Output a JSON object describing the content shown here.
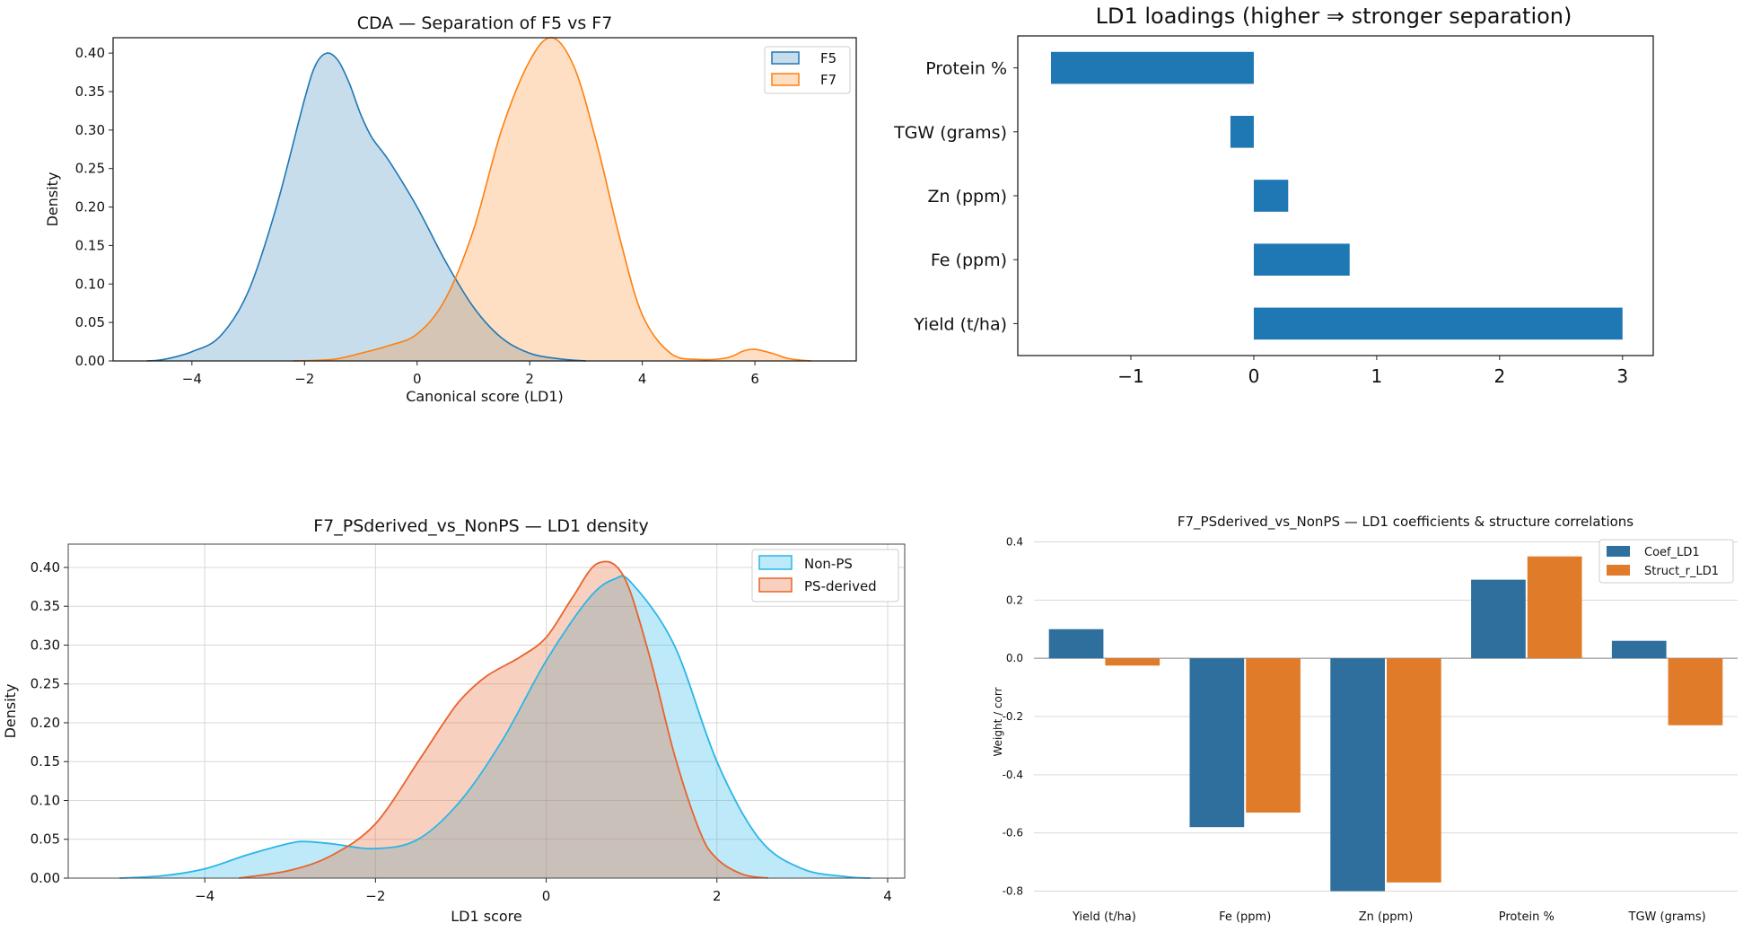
{
  "chart_data": [
    {
      "type": "area",
      "title": "CDA — Separation of F5 vs F7",
      "xlabel": "Canonical score (LD1)",
      "ylabel": "Density",
      "xlim": [
        -5.4,
        7.8
      ],
      "ylim": [
        0,
        0.42
      ],
      "xticks": [
        -4,
        -2,
        0,
        2,
        4,
        6
      ],
      "xtick_labels": [
        "−4",
        "−2",
        "0",
        "2",
        "4",
        "6"
      ],
      "yticks": [
        0,
        0.05,
        0.1,
        0.15,
        0.2,
        0.25,
        0.3,
        0.35,
        0.4
      ],
      "ytick_labels": [
        "0.00",
        "0.05",
        "0.10",
        "0.15",
        "0.20",
        "0.25",
        "0.30",
        "0.35",
        "0.40"
      ],
      "grid": false,
      "legend_position": "top-right",
      "series": [
        {
          "name": "F5",
          "color": "#1f77b4",
          "x": [
            -4.8,
            -4.5,
            -4.0,
            -3.5,
            -3.0,
            -2.5,
            -2.0,
            -1.8,
            -1.6,
            -1.4,
            -1.2,
            -1.0,
            -0.8,
            -0.5,
            0.0,
            0.5,
            1.0,
            1.5,
            2.0,
            2.5,
            3.0
          ],
          "y": [
            0.0,
            0.002,
            0.012,
            0.032,
            0.09,
            0.2,
            0.34,
            0.385,
            0.4,
            0.39,
            0.36,
            0.32,
            0.29,
            0.26,
            0.2,
            0.13,
            0.07,
            0.03,
            0.01,
            0.003,
            0.0
          ]
        },
        {
          "name": "F7",
          "color": "#ff7f0e",
          "x": [
            -2.2,
            -1.5,
            -1.0,
            -0.5,
            0.0,
            0.5,
            1.0,
            1.5,
            2.0,
            2.4,
            2.8,
            3.2,
            3.6,
            4.0,
            4.5,
            5.0,
            5.5,
            5.8,
            6.0,
            6.3,
            6.6,
            7.0
          ],
          "y": [
            0.0,
            0.002,
            0.01,
            0.02,
            0.035,
            0.08,
            0.17,
            0.3,
            0.39,
            0.42,
            0.38,
            0.28,
            0.16,
            0.06,
            0.01,
            0.002,
            0.004,
            0.013,
            0.015,
            0.01,
            0.003,
            0.0
          ]
        }
      ]
    },
    {
      "type": "bar",
      "orientation": "horizontal",
      "title": "LD1 loadings (higher ⇒ stronger separation)",
      "xlabel": "",
      "ylabel": "",
      "xlim": [
        -1.92,
        3.25
      ],
      "xticks": [
        -1,
        0,
        1,
        2,
        3
      ],
      "xtick_labels": [
        "−1",
        "0",
        "1",
        "2",
        "3"
      ],
      "categories": [
        "Protein %",
        "TGW (grams)",
        "Zn (ppm)",
        "Fe (ppm)",
        "Yield (t/ha)"
      ],
      "values": [
        -1.65,
        -0.19,
        0.28,
        0.78,
        3.0
      ],
      "color": "#1f77b4",
      "grid": false
    },
    {
      "type": "area",
      "title": "F7_PSderived_vs_NonPS — LD1 density",
      "xlabel": "LD1 score",
      "ylabel": "Density",
      "xlim": [
        -5.6,
        4.2
      ],
      "ylim": [
        0,
        0.43
      ],
      "xticks": [
        -4,
        -2,
        0,
        2,
        4
      ],
      "xtick_labels": [
        "−4",
        "−2",
        "0",
        "2",
        "4"
      ],
      "yticks": [
        0,
        0.05,
        0.1,
        0.15,
        0.2,
        0.25,
        0.3,
        0.35,
        0.4
      ],
      "ytick_labels": [
        "0.00",
        "0.05",
        "0.10",
        "0.15",
        "0.20",
        "0.25",
        "0.30",
        "0.35",
        "0.40"
      ],
      "grid": true,
      "legend_position": "top-right",
      "series": [
        {
          "name": "Non-PS",
          "color": "#29b6e8",
          "x": [
            -5.0,
            -4.5,
            -4.0,
            -3.5,
            -3.0,
            -2.8,
            -2.5,
            -2.0,
            -1.5,
            -1.0,
            -0.5,
            0.0,
            0.5,
            0.8,
            1.0,
            1.5,
            2.0,
            2.5,
            3.0,
            3.5,
            3.8
          ],
          "y": [
            0.0,
            0.003,
            0.012,
            0.03,
            0.045,
            0.047,
            0.044,
            0.038,
            0.05,
            0.1,
            0.18,
            0.28,
            0.36,
            0.385,
            0.38,
            0.3,
            0.15,
            0.05,
            0.012,
            0.002,
            0.0
          ]
        },
        {
          "name": "PS-derived",
          "color": "#e8632b",
          "x": [
            -3.6,
            -3.0,
            -2.5,
            -2.0,
            -1.5,
            -1.2,
            -1.0,
            -0.7,
            -0.3,
            0.0,
            0.3,
            0.6,
            0.9,
            1.2,
            1.5,
            1.8,
            2.0,
            2.3,
            2.6
          ],
          "y": [
            0.0,
            0.01,
            0.03,
            0.07,
            0.15,
            0.2,
            0.23,
            0.26,
            0.285,
            0.31,
            0.36,
            0.405,
            0.39,
            0.29,
            0.16,
            0.06,
            0.025,
            0.005,
            0.0
          ]
        }
      ]
    },
    {
      "type": "bar",
      "title": "F7_PSderived_vs_NonPS — LD1 coefficients & structure correlations",
      "xlabel": "",
      "ylabel": "Weight / corr",
      "ylim": [
        -0.82,
        0.42
      ],
      "yticks": [
        0.4,
        0.2,
        0.0,
        -0.2,
        -0.4,
        -0.6,
        -0.8
      ],
      "ytick_labels": [
        "0.4",
        "0.2",
        "0.0",
        "-0.2",
        "-0.4",
        "-0.6",
        "-0.8"
      ],
      "grid": true,
      "legend_position": "top-right",
      "categories": [
        "Yield (t/ha)",
        "Fe (ppm)",
        "Zn (ppm)",
        "Protein %",
        "TGW (grams)"
      ],
      "series": [
        {
          "name": "Coef_LD1",
          "color": "#2e6f9e",
          "values": [
            0.1,
            -0.58,
            -0.8,
            0.27,
            0.06
          ]
        },
        {
          "name": "Struct_r_LD1",
          "color": "#e07b2a",
          "values": [
            -0.025,
            -0.53,
            -0.77,
            0.35,
            -0.23
          ]
        }
      ]
    }
  ]
}
